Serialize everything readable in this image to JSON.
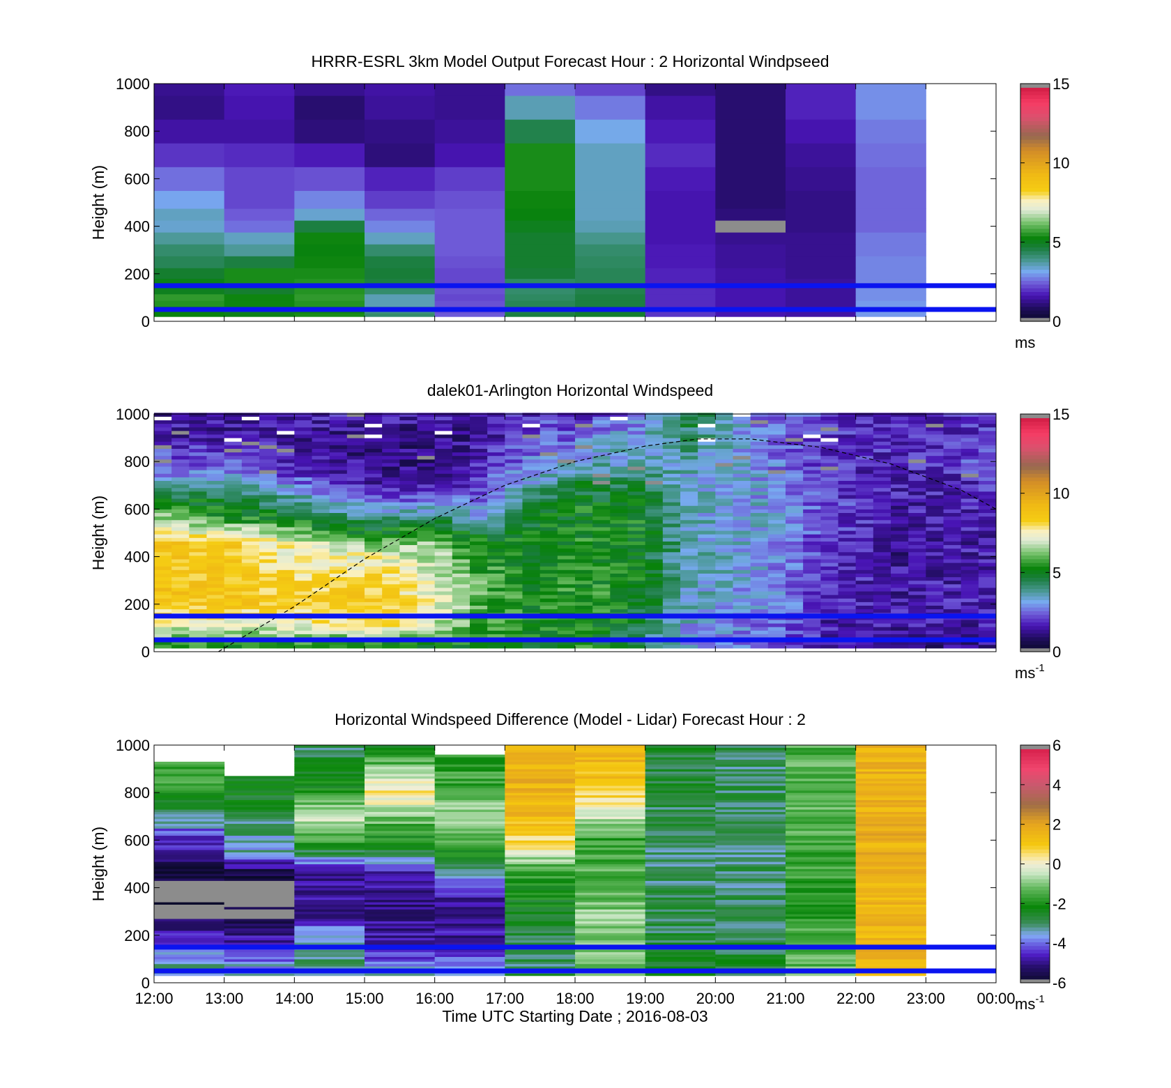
{
  "colors": {
    "reference_line": "#0a14f0",
    "boundary_line": "#000000",
    "missing": "#8c8c8c",
    "background": "#ffffff"
  },
  "x_axis": {
    "ticks": [
      "12:00",
      "13:00",
      "14:00",
      "15:00",
      "16:00",
      "17:00",
      "18:00",
      "19:00",
      "20:00",
      "21:00",
      "22:00",
      "23:00",
      "00:00"
    ],
    "xlabel": "Time UTC  Starting Date ; 2016-08-03"
  },
  "chart_data": [
    {
      "type": "heatmap",
      "title": "HRRR-ESRL 3km Model Output   Forecast Hour : 2 Horizontal Windpseed",
      "ylabel": "Height (m)",
      "x": [
        "12:00",
        "13:00",
        "14:00",
        "15:00",
        "16:00",
        "17:00",
        "18:00",
        "19:00",
        "20:00",
        "21:00",
        "22:00",
        "23:00"
      ],
      "x_range": [
        "12:00",
        "00:00"
      ],
      "ylim": [
        0,
        1000
      ],
      "yticks": [
        "0",
        "200",
        "400",
        "600",
        "800",
        "1000"
      ],
      "y_levels": [
        20,
        50,
        75,
        100,
        130,
        160,
        200,
        250,
        300,
        350,
        400,
        450,
        500,
        600,
        700,
        800,
        900,
        1000
      ],
      "values": [
        [
          5.2,
          5.1,
          5.4,
          4.2,
          2.4,
          4.6,
          4.8,
          2.0,
          1.6,
          1.5,
          3.0,
          null
        ],
        [
          5.2,
          5.0,
          5.3,
          4.0,
          2.3,
          4.5,
          4.8,
          2.0,
          1.6,
          1.5,
          3.0,
          null
        ],
        [
          5.5,
          5.3,
          5.5,
          3.6,
          2.3,
          4.4,
          4.6,
          1.9,
          1.6,
          1.4,
          3.0,
          null
        ],
        [
          5.6,
          5.3,
          5.6,
          3.6,
          2.2,
          4.3,
          4.6,
          1.9,
          1.6,
          1.4,
          2.9,
          null
        ],
        [
          5.0,
          4.8,
          5.5,
          4.2,
          2.3,
          4.2,
          4.5,
          1.9,
          1.6,
          1.4,
          2.9,
          null
        ],
        [
          5.1,
          5.4,
          5.5,
          4.6,
          2.2,
          4.3,
          4.4,
          1.8,
          1.5,
          1.4,
          2.8,
          null
        ],
        [
          4.8,
          5.4,
          5.4,
          4.7,
          2.2,
          4.7,
          4.4,
          1.8,
          1.5,
          1.3,
          2.8,
          null
        ],
        [
          4.4,
          4.6,
          5.3,
          4.6,
          2.3,
          4.8,
          4.3,
          1.7,
          1.4,
          1.3,
          2.8,
          null
        ],
        [
          4.2,
          3.8,
          5.2,
          4.2,
          2.4,
          4.8,
          4.2,
          1.7,
          1.4,
          1.3,
          2.7,
          null
        ],
        [
          3.8,
          3.5,
          5.3,
          3.5,
          2.4,
          4.8,
          3.9,
          1.6,
          1.3,
          1.3,
          2.7,
          null
        ],
        [
          3.4,
          2.6,
          4.6,
          2.8,
          2.4,
          5.0,
          3.6,
          1.6,
          null,
          1.2,
          2.5,
          null
        ],
        [
          3.5,
          2.4,
          3.4,
          2.5,
          2.4,
          5.2,
          3.5,
          1.6,
          1.1,
          1.2,
          2.5,
          null
        ],
        [
          3.1,
          2.2,
          2.8,
          2.1,
          2.3,
          5.3,
          3.5,
          1.6,
          1.0,
          1.2,
          2.5,
          null
        ],
        [
          2.6,
          2.2,
          2.3,
          1.8,
          2.1,
          5.4,
          3.5,
          1.7,
          1.0,
          1.3,
          2.5,
          null
        ],
        [
          2.0,
          1.9,
          1.7,
          1.1,
          1.6,
          5.4,
          3.5,
          1.9,
          1.0,
          1.4,
          2.6,
          null
        ],
        [
          1.5,
          1.5,
          1.1,
          1.2,
          1.4,
          4.5,
          3.2,
          1.7,
          1.0,
          1.6,
          2.7,
          null
        ],
        [
          1.2,
          1.6,
          1.0,
          1.4,
          1.3,
          3.6,
          2.7,
          1.5,
          1.0,
          1.8,
          2.9,
          null
        ],
        [
          1.3,
          1.7,
          1.3,
          1.5,
          1.3,
          2.6,
          2.2,
          1.2,
          1.0,
          1.8,
          2.9,
          null
        ]
      ],
      "reference_heights": [
        150,
        50
      ],
      "colorbar": {
        "range": [
          0,
          15
        ],
        "ticks": [
          "0",
          "5",
          "10",
          "15"
        ],
        "unit": "ms",
        "unit_superscript": ""
      }
    },
    {
      "type": "heatmap",
      "title": "dalek01-Arlington  Horizontal Windspeed",
      "ylabel": "Height (m)",
      "x_range": [
        "12:00",
        "00:00"
      ],
      "ylim": [
        0,
        1000
      ],
      "yticks": [
        "0",
        "200",
        "400",
        "600",
        "800",
        "1000"
      ],
      "column_interval_minutes": 15,
      "row_interval_m": 15,
      "profile_knots": [
        {
          "x": "12:00",
          "h": [
            15,
            100,
            200,
            450,
            550,
            650,
            750,
            900,
            1000
          ],
          "v": [
            5.5,
            7.0,
            8.8,
            8.6,
            6.5,
            4.6,
            2.8,
            1.6,
            1.4
          ]
        },
        {
          "x": "13:00",
          "h": [
            15,
            100,
            200,
            450,
            550,
            650,
            750,
            900,
            1000
          ],
          "v": [
            5.3,
            7.0,
            8.7,
            8.5,
            5.5,
            4.6,
            2.6,
            1.6,
            1.4
          ]
        },
        {
          "x": "14:00",
          "h": [
            15,
            100,
            200,
            450,
            550,
            650,
            750,
            900,
            1000
          ],
          "v": [
            5.2,
            7.3,
            8.6,
            7.0,
            5.0,
            3.4,
            1.9,
            1.3,
            1.8
          ]
        },
        {
          "x": "15:00",
          "h": [
            15,
            100,
            200,
            400,
            480,
            600,
            700,
            900,
            1000
          ],
          "v": [
            5.0,
            7.8,
            8.7,
            7.5,
            5.2,
            3.0,
            1.4,
            1.2,
            2.0
          ]
        },
        {
          "x": "15:45",
          "h": [
            15,
            100,
            200,
            400,
            520,
            620,
            700,
            900,
            1000
          ],
          "v": [
            5.0,
            7.2,
            7.6,
            6.8,
            5.5,
            2.6,
            1.4,
            1.1,
            1.8
          ]
        },
        {
          "x": "16:30",
          "h": [
            15,
            100,
            250,
            450,
            550,
            650,
            750,
            900,
            1000
          ],
          "v": [
            5.4,
            5.8,
            6.0,
            5.4,
            3.2,
            2.4,
            1.8,
            1.4,
            1.5
          ]
        },
        {
          "x": "17:15",
          "h": [
            15,
            100,
            200,
            400,
            600,
            700,
            800,
            900,
            1000
          ],
          "v": [
            5.0,
            5.2,
            5.3,
            5.2,
            4.8,
            3.4,
            2.8,
            2.2,
            2.0
          ]
        },
        {
          "x": "18:00",
          "h": [
            15,
            100,
            200,
            400,
            600,
            700,
            800,
            900,
            1000
          ],
          "v": [
            5.4,
            5.6,
            5.6,
            5.4,
            5.2,
            4.6,
            3.2,
            2.6,
            2.0
          ]
        },
        {
          "x": "18:45",
          "h": [
            15,
            100,
            200,
            400,
            600,
            700,
            800,
            900,
            1000
          ],
          "v": [
            4.2,
            4.6,
            5.0,
            5.2,
            5.2,
            4.4,
            3.5,
            3.2,
            2.6
          ]
        },
        {
          "x": "19:30",
          "h": [
            15,
            100,
            200,
            400,
            600,
            700,
            800,
            900,
            1000
          ],
          "v": [
            3.0,
            3.2,
            3.4,
            3.6,
            3.4,
            3.4,
            3.6,
            4.2,
            4.6
          ]
        },
        {
          "x": "20:30",
          "h": [
            15,
            100,
            200,
            400,
            600,
            700,
            800,
            900,
            1000
          ],
          "v": [
            2.6,
            2.6,
            3.0,
            3.2,
            3.2,
            3.0,
            3.0,
            2.8,
            2.8
          ]
        },
        {
          "x": "21:30",
          "h": [
            15,
            100,
            200,
            400,
            600,
            700,
            800,
            900,
            1000
          ],
          "v": [
            1.8,
            1.6,
            2.0,
            2.0,
            2.2,
            2.0,
            1.8,
            2.0,
            2.0
          ]
        },
        {
          "x": "22:30",
          "h": [
            15,
            100,
            200,
            400,
            600,
            700,
            800,
            900,
            1000
          ],
          "v": [
            1.2,
            1.5,
            1.6,
            1.4,
            1.6,
            1.7,
            1.9,
            1.8,
            1.6
          ]
        },
        {
          "x": "23:45",
          "h": [
            15,
            100,
            200,
            400,
            600,
            700,
            800,
            900,
            1000
          ],
          "v": [
            1.4,
            1.6,
            1.8,
            1.6,
            1.8,
            1.9,
            2.2,
            2.0,
            1.9
          ]
        }
      ],
      "curve": {
        "style": "dashed",
        "x": [
          "12:55",
          "14:00",
          "15:00",
          "16:00",
          "17:00",
          "18:00",
          "19:00",
          "19:45",
          "20:30",
          "21:30",
          "22:30",
          "23:30",
          "00:00"
        ],
        "h": [
          0,
          190,
          390,
          560,
          700,
          800,
          865,
          895,
          895,
          860,
          790,
          680,
          600
        ]
      },
      "reference_heights": [
        150,
        50
      ],
      "colorbar": {
        "range": [
          0,
          15
        ],
        "ticks": [
          "0",
          "5",
          "10",
          "15"
        ],
        "unit": "ms",
        "unit_superscript": "-1"
      }
    },
    {
      "type": "heatmap",
      "title": "Horizontal Windspeed Difference (Model - Lidar) Forecast Hour : 2",
      "ylabel": "Height (m)",
      "xlabel": "Time UTC  Starting Date ; 2016-08-03",
      "x": [
        "12:00",
        "13:00",
        "14:00",
        "15:00",
        "16:00",
        "17:00",
        "18:00",
        "19:00",
        "20:00",
        "21:00",
        "22:00",
        "23:00"
      ],
      "x_range": [
        "12:00",
        "00:00"
      ],
      "ylim": [
        0,
        1000
      ],
      "yticks": [
        "0",
        "200",
        "400",
        "600",
        "800",
        "1000"
      ],
      "column_top_heights": [
        930,
        870,
        1000,
        1000,
        960,
        1000,
        1000,
        1000,
        1000,
        1000,
        1000,
        null
      ],
      "profile_knots": [
        {
          "h": [
            15,
            150,
            300,
            450,
            600,
            800,
            1000
          ],
          "v": [
            -3.0,
            -4.2,
            -5.6,
            -5.8,
            -4.5,
            -1.8,
            -1.5
          ]
        },
        {
          "h": [
            15,
            150,
            300,
            450,
            550,
            700,
            1000
          ],
          "v": [
            -3.0,
            -4.6,
            -5.8,
            -5.8,
            -3.5,
            -2.8,
            -1.6
          ]
        },
        {
          "h": [
            15,
            150,
            300,
            450,
            600,
            700,
            800,
            1000
          ],
          "v": [
            -2.8,
            -3.2,
            -5.0,
            -5.0,
            -1.6,
            -0.2,
            -2.0,
            -3.0
          ]
        },
        {
          "h": [
            15,
            150,
            300,
            450,
            550,
            700,
            800,
            1000
          ],
          "v": [
            -3.2,
            -4.8,
            -5.0,
            -4.8,
            -2.6,
            -1.0,
            0.6,
            -2.6
          ]
        },
        {
          "h": [
            15,
            150,
            300,
            400,
            450,
            500,
            600,
            700,
            800,
            1000
          ],
          "v": [
            -3.0,
            -4.8,
            -5.0,
            -4.4,
            -3.6,
            -2.8,
            -1.2,
            -0.5,
            -1.5,
            -1.8
          ]
        },
        {
          "h": [
            15,
            150,
            250,
            400,
            500,
            550,
            700,
            800,
            1000
          ],
          "v": [
            -2.8,
            -3.0,
            -2.6,
            -2.0,
            -1.2,
            0.3,
            1.4,
            1.6,
            1.7
          ]
        },
        {
          "h": [
            15,
            150,
            300,
            450,
            600,
            750,
            850,
            1000
          ],
          "v": [
            -1.2,
            -0.8,
            -1.0,
            -1.4,
            -1.8,
            0.3,
            1.2,
            1.6
          ]
        },
        {
          "h": [
            15,
            200,
            400,
            600,
            800,
            1000
          ],
          "v": [
            -2.6,
            -2.8,
            -3.0,
            -3.0,
            -2.8,
            -2.6
          ]
        },
        {
          "h": [
            15,
            200,
            400,
            600,
            800,
            1000
          ],
          "v": [
            -2.6,
            -2.8,
            -3.0,
            -3.1,
            -3.0,
            -2.9
          ]
        },
        {
          "h": [
            15,
            200,
            400,
            600,
            800,
            1000
          ],
          "v": [
            -1.2,
            -1.6,
            -1.8,
            -1.4,
            -1.4,
            -1.4
          ]
        },
        {
          "h": [
            15,
            200,
            400,
            600,
            800,
            1000
          ],
          "v": [
            1.6,
            1.5,
            1.6,
            1.7,
            1.6,
            1.6
          ]
        },
        {
          "h": [
            15,
            1000
          ],
          "v": [
            null,
            null
          ]
        }
      ],
      "reference_heights": [
        150,
        50
      ],
      "colorbar": {
        "range": [
          -6,
          6
        ],
        "ticks": [
          "-6",
          "-4",
          "-2",
          "0",
          "2",
          "4",
          "6"
        ],
        "unit": "ms",
        "unit_superscript": "-1"
      }
    }
  ]
}
